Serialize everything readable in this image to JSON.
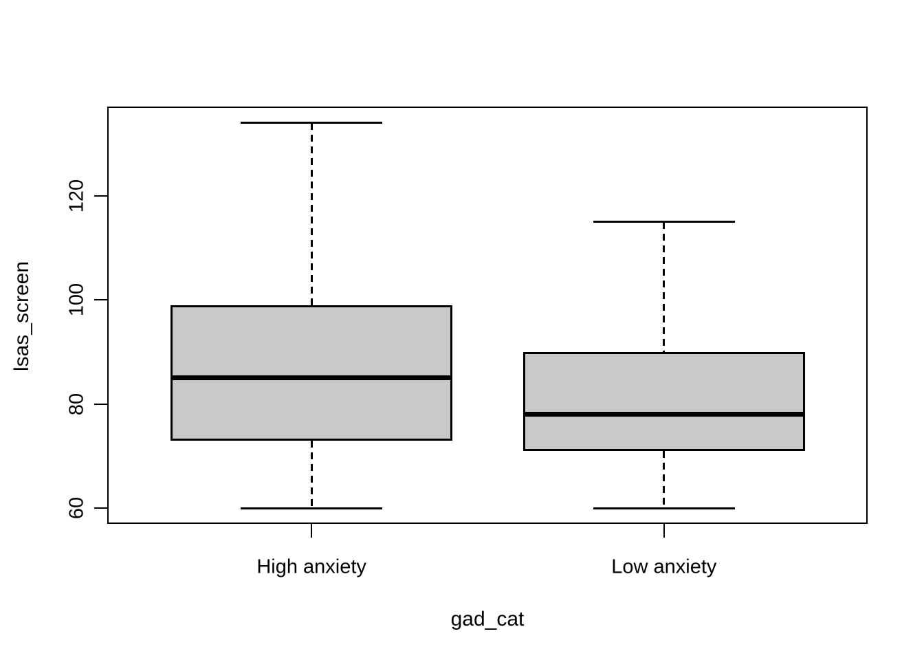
{
  "chart_data": {
    "type": "boxplot",
    "title": "",
    "xlabel": "gad_cat",
    "ylabel": "lsas_screen",
    "categories": [
      "High anxiety",
      "Low anxiety"
    ],
    "boxes": [
      {
        "category": "High anxiety",
        "min": 60,
        "q1": 73,
        "median": 85,
        "q3": 99,
        "max": 134
      },
      {
        "category": "Low anxiety",
        "min": 60,
        "q1": 71,
        "median": 78,
        "q3": 90,
        "max": 115
      }
    ],
    "y_ticks": [
      60,
      80,
      100,
      120
    ],
    "ylim": [
      57,
      137
    ],
    "grid": false,
    "legend": "none",
    "colors": {
      "box_fill": "#c9c9c9",
      "line": "#000000",
      "background": "#ffffff"
    },
    "layout": {
      "x_centers_pct": [
        26.8,
        73.2
      ],
      "box_width_pct": 37.1,
      "cap_width_pct": 18.6
    }
  }
}
